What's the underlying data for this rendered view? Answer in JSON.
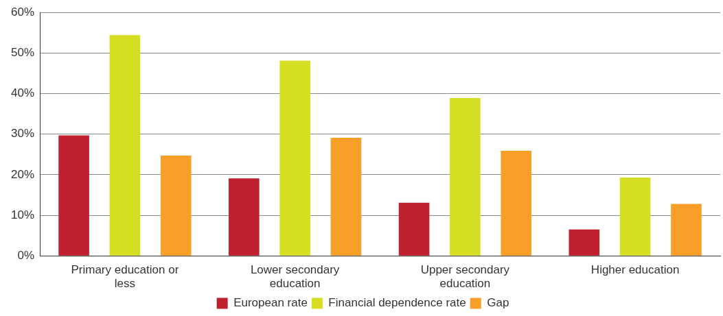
{
  "chart_data": {
    "type": "bar",
    "categories": [
      "Primary education or less",
      "Lower secondary education",
      "Upper secondary education",
      "Higher education"
    ],
    "series": [
      {
        "name": "European rate",
        "color": "#c01f2f",
        "values": [
          29.7,
          19.1,
          13.1,
          6.5
        ]
      },
      {
        "name": "Financial dependence rate",
        "color": "#d4de22",
        "values": [
          54.4,
          48.1,
          38.9,
          19.3
        ]
      },
      {
        "name": "Gap",
        "color": "#f89f29",
        "values": [
          24.7,
          29.1,
          25.9,
          12.8
        ]
      }
    ],
    "ylim": [
      0,
      60
    ],
    "yticks": [
      {
        "value": 0,
        "label": "0%"
      },
      {
        "value": 10,
        "label": "10%"
      },
      {
        "value": 20,
        "label": "20%"
      },
      {
        "value": 30,
        "label": "30%"
      },
      {
        "value": 40,
        "label": "40%"
      },
      {
        "value": 50,
        "label": "50%"
      },
      {
        "value": 60,
        "label": "60%"
      }
    ],
    "grid": "y",
    "legend": "bottom"
  }
}
